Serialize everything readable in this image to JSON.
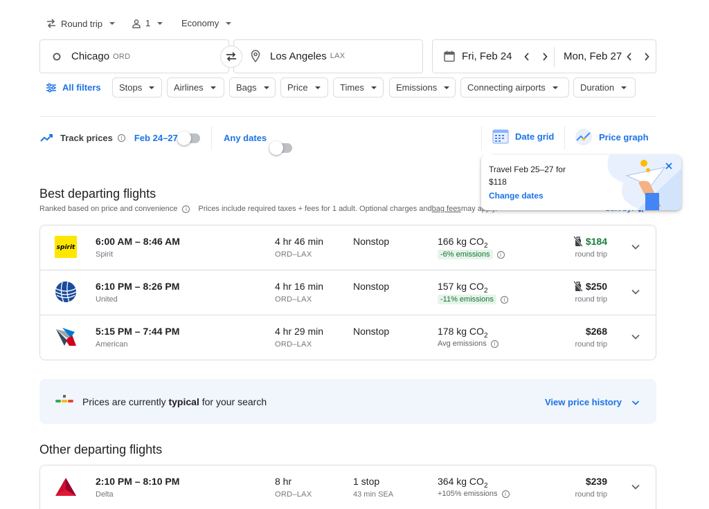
{
  "trip": {
    "type": "Round trip",
    "passengers": "1",
    "cabin": "Economy"
  },
  "search": {
    "origin_city": "Chicago",
    "origin_code": "ORD",
    "destination_city": "Los Angeles",
    "destination_code": "LAX",
    "depart_date": "Fri, Feb 24",
    "return_date": "Mon, Feb 27"
  },
  "filters": {
    "all_filters": "All filters",
    "chips": [
      "Stops",
      "Airlines",
      "Bags",
      "Price",
      "Times",
      "Emissions",
      "Connecting airports",
      "Duration"
    ]
  },
  "track": {
    "label": "Track prices",
    "dates": "Feb 24–27",
    "any_dates": "Any dates",
    "date_grid": "Date grid",
    "price_graph": "Price graph"
  },
  "tooltip": {
    "line1": "Travel Feb 25–27 for",
    "line2": "$118",
    "link": "Change dates"
  },
  "best": {
    "title": "Best departing flights",
    "ranked": "Ranked based on price and convenience",
    "prices_note_pre": "Prices include required taxes + fees for 1 adult. Optional charges and ",
    "prices_note_link": "bag fees",
    "prices_note_post": " may apply.",
    "sort": "Sort by:"
  },
  "flights_best": [
    {
      "time": "6:00 AM – 8:46 AM",
      "airline": "Spirit",
      "duration": "4 hr 46 min",
      "route": "ORD–LAX",
      "stops": "Nonstop",
      "stops_sub": "",
      "co2": "166 kg CO",
      "emissions": "-6% emissions",
      "price": "$184",
      "price_sub": "round trip"
    },
    {
      "time": "6:10 PM – 8:26 PM",
      "airline": "United",
      "duration": "4 hr 16 min",
      "route": "ORD–LAX",
      "stops": "Nonstop",
      "stops_sub": "",
      "co2": "157 kg CO",
      "emissions": "-11% emissions",
      "price": "$250",
      "price_sub": "round trip"
    },
    {
      "time": "5:15 PM – 7:44 PM",
      "airline": "American",
      "duration": "4 hr 29 min",
      "route": "ORD–LAX",
      "stops": "Nonstop",
      "stops_sub": "",
      "co2": "178 kg CO",
      "emissions": "Avg emissions",
      "price": "$268",
      "price_sub": "round trip"
    }
  ],
  "co2_sub": "2",
  "spirit_logo_text": "spirit",
  "price_insight": {
    "pre": "Prices are currently ",
    "bold": "typical",
    "post": " for your search",
    "link": "View price history"
  },
  "other": {
    "title": "Other departing flights"
  },
  "flights_other": [
    {
      "time": "2:10 PM – 8:10 PM",
      "airline": "Delta",
      "duration": "8 hr",
      "route": "ORD–LAX",
      "stops": "1 stop",
      "stops_sub": "43 min SEA",
      "co2": "364 kg CO",
      "emissions": "+105% emissions",
      "price": "$239",
      "price_sub": "round trip"
    }
  ],
  "colors": {
    "accent": "#1a73e8",
    "green_price": "#188038",
    "badge_green_bg": "#e6f4ea"
  }
}
